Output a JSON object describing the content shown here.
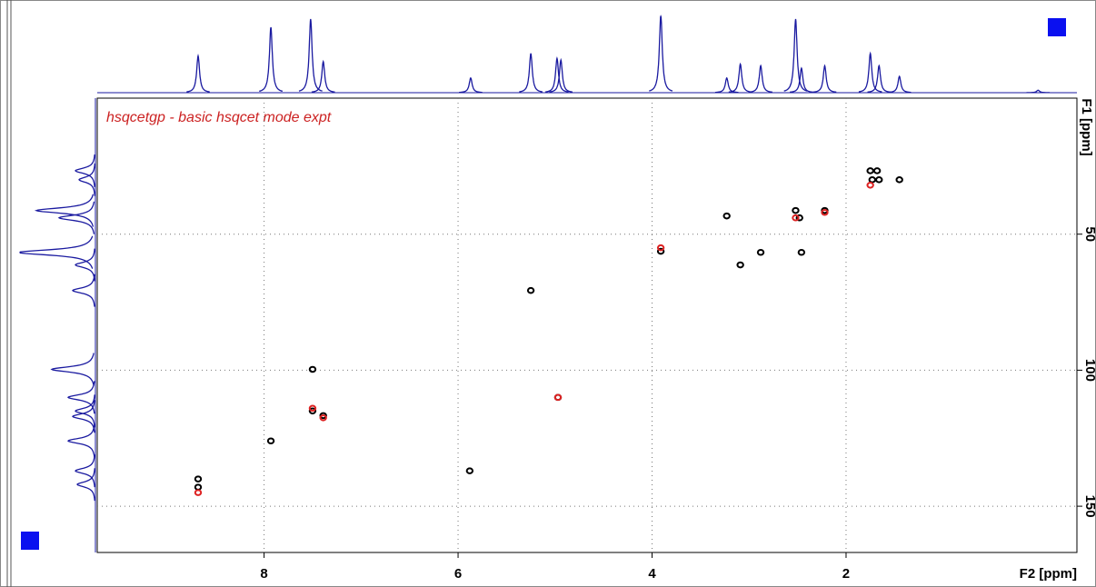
{
  "chart_data": {
    "type": "scatter",
    "title": "hsqcetgp   - basic hsqcet mode expt",
    "x_label": "F2 [ppm]",
    "y_label": "F1 [ppm]",
    "xlim": [
      9.72,
      -0.38
    ],
    "ylim": [
      0,
      167
    ],
    "xticks": [
      8,
      6,
      4,
      2
    ],
    "yticks": [
      50,
      100,
      150
    ],
    "grid": true,
    "series": [
      {
        "color": "#000000",
        "x": [
          8.68,
          8.68,
          7.93,
          7.5,
          7.5,
          7.39,
          5.88,
          5.25,
          4.97,
          3.91,
          3.23,
          3.09,
          2.88,
          2.52,
          2.48,
          2.46,
          2.22,
          1.75,
          1.68,
          1.73,
          1.66,
          1.45
        ],
        "y": [
          140,
          143,
          126,
          99.7,
          115,
          116.7,
          137,
          70.7,
          110,
          56.3,
          43.3,
          61.3,
          56.7,
          41.3,
          44,
          56.7,
          41.3,
          26.7,
          26.7,
          30,
          30,
          30
        ]
      },
      {
        "color": "#dd2222",
        "x": [
          8.68,
          7.5,
          7.39,
          4.97,
          3.91,
          2.52,
          2.22,
          1.75
        ],
        "y": [
          145,
          114,
          117.5,
          110,
          55,
          44,
          42,
          32
        ]
      }
    ],
    "f2_projection": {
      "color": "#1a1aa0",
      "ppm": [
        8.68,
        7.93,
        7.52,
        7.39,
        5.87,
        5.25,
        4.98,
        4.94,
        3.91,
        3.23,
        3.09,
        2.88,
        2.52,
        2.46,
        2.22,
        1.75,
        1.66,
        1.45,
        0.02
      ],
      "height": [
        45,
        80,
        90,
        38,
        18,
        48,
        42,
        40,
        95,
        18,
        35,
        33,
        90,
        30,
        33,
        48,
        33,
        20,
        3
      ]
    },
    "f1_projection": {
      "color": "#1a1aa0",
      "ppm": [
        26.7,
        30,
        41.3,
        44,
        56.7,
        61.3,
        70.7,
        99.7,
        110,
        115,
        117,
        126,
        137,
        142
      ],
      "height": [
        22,
        18,
        65,
        40,
        85,
        22,
        25,
        48,
        30,
        22,
        25,
        30,
        22,
        20
      ]
    }
  }
}
